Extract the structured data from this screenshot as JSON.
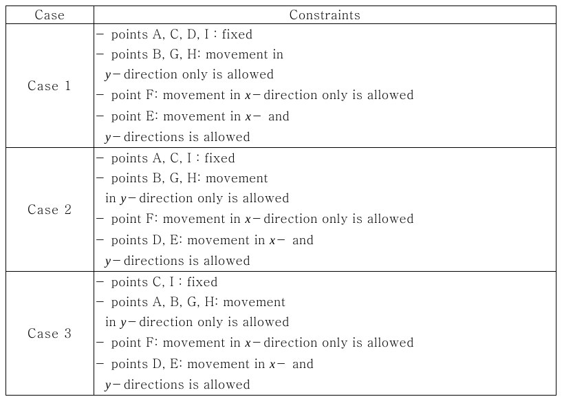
{
  "headers": {
    "case": "Case",
    "constraints": "Constraints"
  },
  "cases": [
    {
      "label": "Case 1",
      "lines": [
        {
          "indent": false,
          "segments": [
            {
              "t": "－ points A, C, D, I : fixed"
            }
          ]
        },
        {
          "indent": false,
          "segments": [
            {
              "t": "－ points B, G, H: movement in"
            }
          ]
        },
        {
          "indent": true,
          "segments": [
            {
              "t": "y",
              "i": true
            },
            {
              "t": "－direction only is allowed"
            }
          ]
        },
        {
          "indent": false,
          "segments": [
            {
              "t": "－ point F: movement in "
            },
            {
              "t": "x",
              "i": true
            },
            {
              "t": "－direction only is allowed"
            }
          ]
        },
        {
          "indent": false,
          "segments": [
            {
              "t": "－ point E: movement in "
            },
            {
              "t": "x",
              "i": true
            },
            {
              "t": "－ and"
            }
          ]
        },
        {
          "indent": true,
          "segments": [
            {
              "t": "y",
              "i": true
            },
            {
              "t": "－directions is allowed"
            }
          ]
        }
      ]
    },
    {
      "label": "Case 2",
      "lines": [
        {
          "indent": false,
          "segments": [
            {
              "t": "－ points A, C, I : fixed"
            }
          ]
        },
        {
          "indent": false,
          "segments": [
            {
              "t": "－ points B, G, H: movement"
            }
          ]
        },
        {
          "indent": true,
          "segments": [
            {
              "t": "in "
            },
            {
              "t": "y",
              "i": true
            },
            {
              "t": "－direction only is allowed"
            }
          ]
        },
        {
          "indent": false,
          "segments": [
            {
              "t": "－ point F: movement in "
            },
            {
              "t": "x",
              "i": true
            },
            {
              "t": "－direction only is allowed"
            }
          ]
        },
        {
          "indent": false,
          "segments": [
            {
              "t": "－ points D, E: movement in "
            },
            {
              "t": "x",
              "i": true
            },
            {
              "t": "－ and"
            }
          ]
        },
        {
          "indent": true,
          "segments": [
            {
              "t": "y",
              "i": true
            },
            {
              "t": "－directions is allowed"
            }
          ]
        }
      ]
    },
    {
      "label": "Case 3",
      "lines": [
        {
          "indent": false,
          "segments": [
            {
              "t": "－ points C, I : fixed"
            }
          ]
        },
        {
          "indent": false,
          "segments": [
            {
              "t": "－ points A, B, G, H: movement"
            }
          ]
        },
        {
          "indent": true,
          "segments": [
            {
              "t": "in "
            },
            {
              "t": "y",
              "i": true
            },
            {
              "t": "－direction only is allowed"
            }
          ]
        },
        {
          "indent": false,
          "segments": [
            {
              "t": "－ point F: movement in "
            },
            {
              "t": "x",
              "i": true
            },
            {
              "t": "－direction only is allowed"
            }
          ]
        },
        {
          "indent": false,
          "segments": [
            {
              "t": "－ points D, E: movement in "
            },
            {
              "t": "x",
              "i": true
            },
            {
              "t": "－ and"
            }
          ]
        },
        {
          "indent": true,
          "segments": [
            {
              "t": "y",
              "i": true
            },
            {
              "t": "－directions is allowed"
            }
          ]
        }
      ]
    }
  ]
}
